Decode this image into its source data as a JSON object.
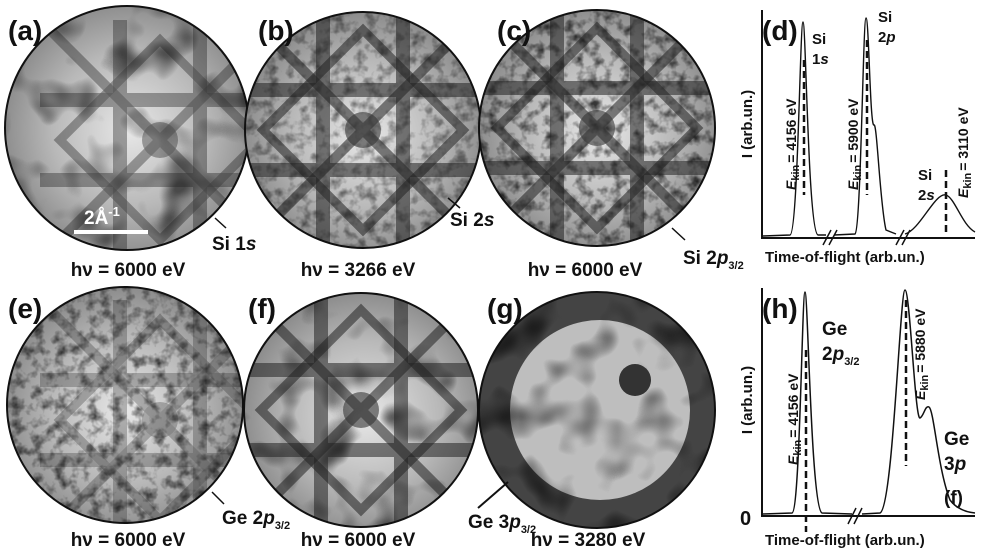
{
  "images": [
    {
      "label": "(a)",
      "caption": "hν = 6000 eV",
      "annotation": {
        "text": "Si 1",
        "italic": "s"
      },
      "scale_bar": "2Å",
      "scale_bar_sup": "-1"
    },
    {
      "label": "(b)",
      "caption": "hν = 3266 eV",
      "annotation": {
        "text": "Si 2",
        "italic": "s"
      }
    },
    {
      "label": "(c)",
      "caption": "hν = 6000 eV",
      "annotation": {
        "text": "Si 2",
        "italic": "p",
        "sub": "3/2"
      }
    },
    {
      "label": "(e)",
      "caption": "hν = 6000 eV",
      "annotation": {
        "text": "Ge 2",
        "italic": "p",
        "sub": "3/2"
      }
    },
    {
      "label": "(f)",
      "caption": "hν = 6000 eV"
    },
    {
      "label": "(g)",
      "caption": "hν = 3280 eV",
      "annotation": {
        "text": "Ge 3",
        "italic": "p",
        "sub": "3/2"
      }
    }
  ],
  "spectra": [
    {
      "label": "(d)",
      "y_label": "I (arb.un.)",
      "x_label": "Time-of-flight (arb.un.)",
      "peaks": [
        {
          "element": "Si",
          "level": "1",
          "orbital": "s",
          "energy": {
            "symbol": "E",
            "sub": "kin",
            "text": "= 4156 eV"
          }
        },
        {
          "element": "Si",
          "level": "2",
          "orbital": "p",
          "energy": {
            "symbol": "E",
            "sub": "kin",
            "text": "= 5900 eV"
          }
        },
        {
          "element": "Si",
          "level": "2",
          "orbital": "s",
          "energy": {
            "symbol": "E",
            "sub": "kin",
            "text": "= 3110 eV"
          }
        }
      ]
    },
    {
      "label": "(h)",
      "y_label": "I (arb.un.)",
      "x_label": "Time-of-flight (arb.un.)",
      "zero": "0",
      "peaks": [
        {
          "element": "Ge",
          "level": "2",
          "orbital": "p",
          "sub": "3/2",
          "energy": {
            "symbol": "E",
            "sub": "kin",
            "text": "= 4156 eV"
          }
        },
        {
          "element": "Ge",
          "level": "3",
          "orbital": "p",
          "note": "(f)",
          "energy": {
            "symbol": "E",
            "sub": "kin",
            "text": "= 5880 eV"
          }
        }
      ]
    }
  ]
}
